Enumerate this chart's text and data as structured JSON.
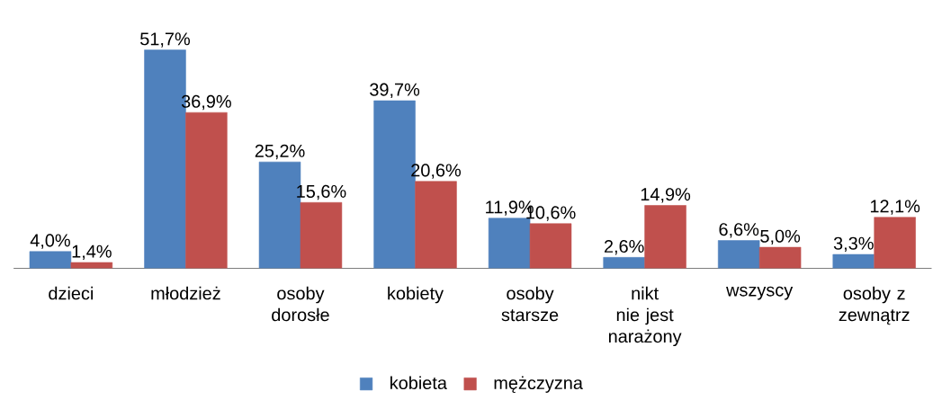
{
  "chart_data": {
    "type": "bar",
    "categories": [
      "dzieci",
      "młodzież",
      "osoby dorosłe",
      "kobiety",
      "osoby starsze",
      "nikt nie jest narażony",
      "wszyscy",
      "osoby z zewnątrz"
    ],
    "series": [
      {
        "name": "kobieta",
        "color": "#4f81bd",
        "values": [
          4.0,
          51.7,
          25.2,
          39.7,
          11.9,
          2.6,
          6.6,
          3.3
        ],
        "value_labels": [
          "4,0%",
          "51,7%",
          "25,2%",
          "39,7%",
          "11,9%",
          "2,6%",
          "6,6%",
          "3,3%"
        ]
      },
      {
        "name": "mężczyzna",
        "color": "#c0504d",
        "values": [
          1.4,
          36.9,
          15.6,
          20.6,
          10.6,
          14.9,
          5.0,
          12.1
        ],
        "value_labels": [
          "1,4%",
          "36,9%",
          "15,6%",
          "20,6%",
          "10,6%",
          "14,9%",
          "5,0%",
          "12,1%"
        ]
      }
    ],
    "legend": "bottom"
  }
}
